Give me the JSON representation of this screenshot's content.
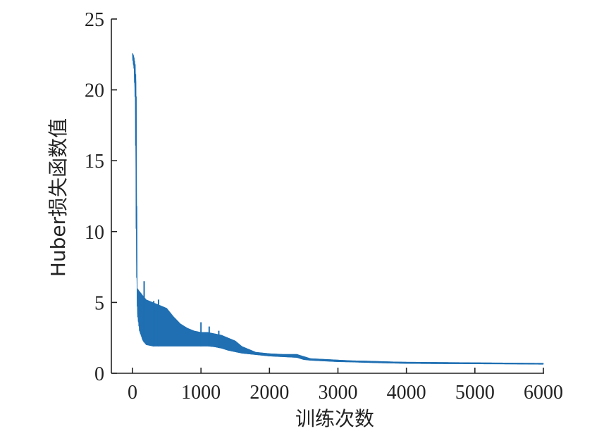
{
  "chart_data": {
    "type": "line",
    "title": "",
    "xlabel": "训练次数",
    "ylabel": "Huber损失函数值",
    "xlim": [
      -300,
      6000
    ],
    "ylim": [
      0,
      25
    ],
    "x_ticks": [
      0,
      1000,
      2000,
      3000,
      4000,
      5000,
      6000
    ],
    "x_tick_labels": [
      "0",
      "1000",
      "2000",
      "3000",
      "4000",
      "5000",
      "6000"
    ],
    "y_ticks": [
      0,
      5,
      10,
      15,
      20,
      25
    ],
    "y_tick_labels": [
      "0",
      "5",
      "10",
      "15",
      "20",
      "25"
    ],
    "grid": false,
    "legend": "none",
    "color": "#1f6fb2",
    "series": [
      {
        "name": "",
        "envelope": {
          "x": [
            0,
            20,
            40,
            55,
            70,
            100,
            150,
            200,
            300,
            400,
            500,
            600,
            700,
            800,
            900,
            1000,
            1100,
            1200,
            1300,
            1400,
            1500,
            1600,
            1700,
            1800,
            1900,
            2000,
            2200,
            2400,
            2500,
            2600,
            2800,
            3000,
            3200,
            3400,
            3600,
            3800,
            4000,
            4500,
            5000,
            5500,
            6000
          ],
          "upper": [
            22.6,
            22.4,
            21.8,
            20.5,
            6.0,
            5.8,
            5.5,
            5.2,
            5.0,
            4.8,
            4.6,
            4.0,
            3.5,
            3.2,
            3.0,
            2.9,
            2.9,
            2.8,
            2.7,
            2.5,
            2.3,
            1.9,
            1.7,
            1.5,
            1.45,
            1.4,
            1.35,
            1.35,
            1.2,
            1.05,
            1.0,
            0.95,
            0.9,
            0.88,
            0.85,
            0.82,
            0.8,
            0.78,
            0.76,
            0.74,
            0.72
          ],
          "lower": [
            22.2,
            21.5,
            19.0,
            8.0,
            4.2,
            3.0,
            2.3,
            2.0,
            1.9,
            1.9,
            1.9,
            1.9,
            1.9,
            1.9,
            1.9,
            1.9,
            1.9,
            1.85,
            1.75,
            1.6,
            1.5,
            1.4,
            1.35,
            1.3,
            1.25,
            1.2,
            1.15,
            1.1,
            0.95,
            0.9,
            0.85,
            0.8,
            0.78,
            0.75,
            0.72,
            0.7,
            0.68,
            0.66,
            0.65,
            0.64,
            0.62
          ]
        },
        "spikes": [
          {
            "x": 170,
            "value": 6.5
          },
          {
            "x": 310,
            "value": 5.1
          },
          {
            "x": 380,
            "value": 5.2
          },
          {
            "x": 1000,
            "value": 3.6
          },
          {
            "x": 1120,
            "value": 3.3
          },
          {
            "x": 1260,
            "value": 3.0
          }
        ]
      }
    ]
  }
}
